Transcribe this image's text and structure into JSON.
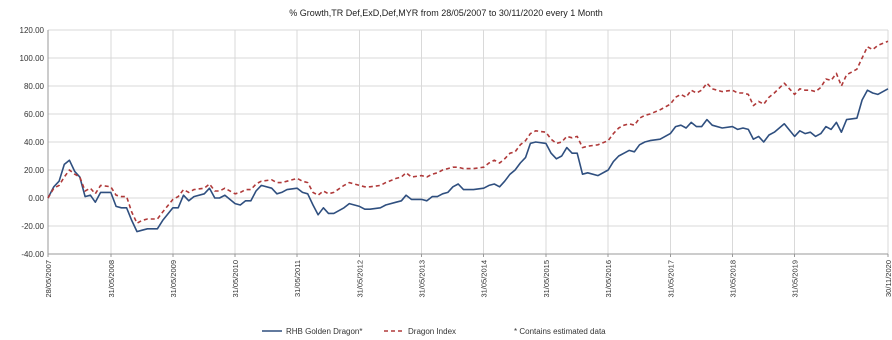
{
  "chart_data": {
    "type": "line",
    "title": "% Growth,TR Def,ExD,Def,MYR from 28/05/2007 to 30/11/2020 every 1 Month",
    "xlabel": "",
    "ylabel": "",
    "x_range": [
      "2007-05-28",
      "2020-11-30"
    ],
    "ylim": [
      -40,
      120
    ],
    "y_ticks": [
      120,
      100,
      80,
      60,
      40,
      20,
      0,
      -20,
      -40
    ],
    "y_tick_labels": [
      "120.00",
      "100.00",
      "80.00",
      "60.00",
      "40.00",
      "20.00",
      "0.00",
      "-20.00",
      "-40.00"
    ],
    "x_ticks": [
      "2007-05-28",
      "2008-05-31",
      "2009-05-31",
      "2010-05-31",
      "2011-05-31",
      "2012-05-31",
      "2013-05-31",
      "2014-05-31",
      "2015-05-31",
      "2016-05-31",
      "2017-05-31",
      "2018-05-31",
      "2019-05-31",
      "2020-11-30"
    ],
    "x_tick_labels": [
      "28/05/2007",
      "31/05/2008",
      "31/05/2009",
      "31/05/2010",
      "31/05/2011",
      "31/05/2012",
      "31/05/2013",
      "31/05/2014",
      "31/05/2015",
      "31/05/2016",
      "31/05/2017",
      "31/05/2018",
      "31/05/2019",
      "30/11/2020"
    ],
    "grid": true,
    "legend_position": "bottom",
    "series": [
      {
        "name": "RHB Golden Dragon*",
        "color": "#2f4f7f",
        "style": "solid",
        "points": [
          [
            "2007-05-28",
            0
          ],
          [
            "2007-07-01",
            8
          ],
          [
            "2007-08-01",
            12
          ],
          [
            "2007-09-01",
            24
          ],
          [
            "2007-10-01",
            27
          ],
          [
            "2007-11-01",
            19
          ],
          [
            "2007-12-01",
            15
          ],
          [
            "2008-01-01",
            1
          ],
          [
            "2008-02-01",
            2
          ],
          [
            "2008-03-01",
            -3
          ],
          [
            "2008-04-01",
            4
          ],
          [
            "2008-05-31",
            4
          ],
          [
            "2008-07-01",
            -6
          ],
          [
            "2008-08-01",
            -7
          ],
          [
            "2008-09-01",
            -7
          ],
          [
            "2008-10-01",
            -16
          ],
          [
            "2008-11-01",
            -24
          ],
          [
            "2008-12-01",
            -23
          ],
          [
            "2009-01-01",
            -22
          ],
          [
            "2009-03-01",
            -22
          ],
          [
            "2009-04-01",
            -16
          ],
          [
            "2009-05-31",
            -7
          ],
          [
            "2009-07-01",
            -7
          ],
          [
            "2009-08-01",
            2
          ],
          [
            "2009-09-01",
            -2
          ],
          [
            "2009-10-01",
            1
          ],
          [
            "2009-12-01",
            3
          ],
          [
            "2010-01-01",
            7
          ],
          [
            "2010-02-01",
            0
          ],
          [
            "2010-03-01",
            0
          ],
          [
            "2010-04-01",
            2
          ],
          [
            "2010-05-31",
            -4
          ],
          [
            "2010-07-01",
            -5
          ],
          [
            "2010-08-01",
            -2
          ],
          [
            "2010-09-01",
            -2
          ],
          [
            "2010-10-01",
            5
          ],
          [
            "2010-11-01",
            9
          ],
          [
            "2011-01-01",
            7
          ],
          [
            "2011-02-01",
            3
          ],
          [
            "2011-03-01",
            4
          ],
          [
            "2011-04-01",
            6
          ],
          [
            "2011-05-31",
            7
          ],
          [
            "2011-07-01",
            4
          ],
          [
            "2011-08-01",
            3
          ],
          [
            "2011-09-01",
            -5
          ],
          [
            "2011-10-01",
            -12
          ],
          [
            "2011-11-01",
            -7
          ],
          [
            "2011-12-01",
            -11
          ],
          [
            "2012-01-01",
            -11
          ],
          [
            "2012-03-01",
            -7
          ],
          [
            "2012-04-01",
            -4
          ],
          [
            "2012-05-31",
            -6
          ],
          [
            "2012-07-01",
            -8
          ],
          [
            "2012-08-01",
            -8
          ],
          [
            "2012-10-01",
            -7
          ],
          [
            "2012-11-01",
            -5
          ],
          [
            "2013-01-01",
            -3
          ],
          [
            "2013-02-01",
            -2
          ],
          [
            "2013-03-01",
            2
          ],
          [
            "2013-04-01",
            -1
          ],
          [
            "2013-05-31",
            -1
          ],
          [
            "2013-07-01",
            -2
          ],
          [
            "2013-08-01",
            1
          ],
          [
            "2013-09-01",
            1
          ],
          [
            "2013-10-01",
            3
          ],
          [
            "2013-11-01",
            4
          ],
          [
            "2013-12-01",
            8
          ],
          [
            "2014-01-01",
            10
          ],
          [
            "2014-02-01",
            6
          ],
          [
            "2014-04-01",
            6
          ],
          [
            "2014-05-31",
            7
          ],
          [
            "2014-07-01",
            9
          ],
          [
            "2014-08-01",
            10
          ],
          [
            "2014-09-01",
            8
          ],
          [
            "2014-10-01",
            12
          ],
          [
            "2014-11-01",
            17
          ],
          [
            "2014-12-01",
            20
          ],
          [
            "2015-01-01",
            25
          ],
          [
            "2015-02-01",
            29
          ],
          [
            "2015-03-01",
            39
          ],
          [
            "2015-04-01",
            40
          ],
          [
            "2015-05-31",
            39
          ],
          [
            "2015-07-01",
            32
          ],
          [
            "2015-08-01",
            28
          ],
          [
            "2015-09-01",
            30
          ],
          [
            "2015-10-01",
            36
          ],
          [
            "2015-11-01",
            32
          ],
          [
            "2015-12-01",
            32
          ],
          [
            "2016-01-01",
            17
          ],
          [
            "2016-02-01",
            18
          ],
          [
            "2016-04-01",
            16
          ],
          [
            "2016-05-31",
            20
          ],
          [
            "2016-07-01",
            26
          ],
          [
            "2016-08-01",
            30
          ],
          [
            "2016-09-01",
            32
          ],
          [
            "2016-10-01",
            34
          ],
          [
            "2016-11-01",
            33
          ],
          [
            "2016-12-01",
            38
          ],
          [
            "2017-01-01",
            40
          ],
          [
            "2017-02-01",
            41
          ],
          [
            "2017-04-01",
            42
          ],
          [
            "2017-05-31",
            46
          ],
          [
            "2017-07-01",
            51
          ],
          [
            "2017-08-01",
            52
          ],
          [
            "2017-09-01",
            50
          ],
          [
            "2017-10-01",
            54
          ],
          [
            "2017-11-01",
            51
          ],
          [
            "2017-12-01",
            51
          ],
          [
            "2018-01-01",
            56
          ],
          [
            "2018-02-01",
            52
          ],
          [
            "2018-04-01",
            50
          ],
          [
            "2018-05-31",
            51
          ],
          [
            "2018-07-01",
            49
          ],
          [
            "2018-08-01",
            50
          ],
          [
            "2018-09-01",
            49
          ],
          [
            "2018-10-01",
            42
          ],
          [
            "2018-11-01",
            44
          ],
          [
            "2018-12-01",
            40
          ],
          [
            "2019-01-01",
            45
          ],
          [
            "2019-02-01",
            47
          ],
          [
            "2019-04-01",
            53
          ],
          [
            "2019-05-31",
            44
          ],
          [
            "2019-07-01",
            48
          ],
          [
            "2019-08-01",
            46
          ],
          [
            "2019-09-01",
            47
          ],
          [
            "2019-10-01",
            44
          ],
          [
            "2019-11-01",
            46
          ],
          [
            "2019-12-01",
            51
          ],
          [
            "2020-01-01",
            49
          ],
          [
            "2020-02-01",
            54
          ],
          [
            "2020-03-01",
            47
          ],
          [
            "2020-04-01",
            56
          ],
          [
            "2020-05-31",
            57
          ],
          [
            "2020-07-01",
            70
          ],
          [
            "2020-08-01",
            77
          ],
          [
            "2020-09-01",
            75
          ],
          [
            "2020-10-01",
            74
          ],
          [
            "2020-11-30",
            78
          ]
        ]
      },
      {
        "name": "Dragon Index",
        "color": "#b03a3a",
        "style": "dashed",
        "points": [
          [
            "2007-05-28",
            0
          ],
          [
            "2007-07-01",
            7
          ],
          [
            "2007-08-01",
            9
          ],
          [
            "2007-09-01",
            15
          ],
          [
            "2007-10-01",
            20
          ],
          [
            "2007-11-01",
            17
          ],
          [
            "2007-12-01",
            15
          ],
          [
            "2008-01-01",
            5
          ],
          [
            "2008-02-01",
            7
          ],
          [
            "2008-03-01",
            3
          ],
          [
            "2008-04-01",
            9
          ],
          [
            "2008-05-31",
            8
          ],
          [
            "2008-07-01",
            2
          ],
          [
            "2008-08-01",
            1
          ],
          [
            "2008-09-01",
            1
          ],
          [
            "2008-10-01",
            -10
          ],
          [
            "2008-11-01",
            -18
          ],
          [
            "2008-12-01",
            -16
          ],
          [
            "2009-01-01",
            -15
          ],
          [
            "2009-03-01",
            -15
          ],
          [
            "2009-04-01",
            -10
          ],
          [
            "2009-05-31",
            -1
          ],
          [
            "2009-07-01",
            1
          ],
          [
            "2009-08-01",
            6
          ],
          [
            "2009-09-01",
            4
          ],
          [
            "2009-10-01",
            6
          ],
          [
            "2009-12-01",
            7
          ],
          [
            "2010-01-01",
            10
          ],
          [
            "2010-02-01",
            5
          ],
          [
            "2010-03-01",
            5
          ],
          [
            "2010-04-01",
            7
          ],
          [
            "2010-05-31",
            3
          ],
          [
            "2010-07-01",
            4
          ],
          [
            "2010-08-01",
            6
          ],
          [
            "2010-09-01",
            6
          ],
          [
            "2010-10-01",
            10
          ],
          [
            "2010-11-01",
            12
          ],
          [
            "2011-01-01",
            13
          ],
          [
            "2011-02-01",
            11
          ],
          [
            "2011-03-01",
            11
          ],
          [
            "2011-04-01",
            12
          ],
          [
            "2011-05-31",
            14
          ],
          [
            "2011-07-01",
            12
          ],
          [
            "2011-08-01",
            11
          ],
          [
            "2011-09-01",
            4
          ],
          [
            "2011-10-01",
            2
          ],
          [
            "2011-11-01",
            5
          ],
          [
            "2011-12-01",
            3
          ],
          [
            "2012-01-01",
            4
          ],
          [
            "2012-03-01",
            9
          ],
          [
            "2012-04-01",
            11
          ],
          [
            "2012-05-31",
            9
          ],
          [
            "2012-07-01",
            8
          ],
          [
            "2012-08-01",
            8
          ],
          [
            "2012-10-01",
            9
          ],
          [
            "2012-11-01",
            11
          ],
          [
            "2013-01-01",
            14
          ],
          [
            "2013-02-01",
            15
          ],
          [
            "2013-03-01",
            18
          ],
          [
            "2013-04-01",
            15
          ],
          [
            "2013-05-31",
            16
          ],
          [
            "2013-07-01",
            15
          ],
          [
            "2013-08-01",
            17
          ],
          [
            "2013-09-01",
            18
          ],
          [
            "2013-10-01",
            20
          ],
          [
            "2013-11-01",
            21
          ],
          [
            "2013-12-01",
            22
          ],
          [
            "2014-01-01",
            22
          ],
          [
            "2014-02-01",
            21
          ],
          [
            "2014-04-01",
            21
          ],
          [
            "2014-05-31",
            22
          ],
          [
            "2014-07-01",
            25
          ],
          [
            "2014-08-01",
            27
          ],
          [
            "2014-09-01",
            25
          ],
          [
            "2014-10-01",
            28
          ],
          [
            "2014-11-01",
            32
          ],
          [
            "2014-12-01",
            33
          ],
          [
            "2015-01-01",
            38
          ],
          [
            "2015-02-01",
            41
          ],
          [
            "2015-03-01",
            46
          ],
          [
            "2015-04-01",
            48
          ],
          [
            "2015-05-31",
            47
          ],
          [
            "2015-07-01",
            42
          ],
          [
            "2015-08-01",
            39
          ],
          [
            "2015-09-01",
            40
          ],
          [
            "2015-10-01",
            44
          ],
          [
            "2015-11-01",
            43
          ],
          [
            "2015-12-01",
            44
          ],
          [
            "2016-01-01",
            36
          ],
          [
            "2016-02-01",
            37
          ],
          [
            "2016-04-01",
            38
          ],
          [
            "2016-05-31",
            41
          ],
          [
            "2016-07-01",
            46
          ],
          [
            "2016-08-01",
            50
          ],
          [
            "2016-09-01",
            52
          ],
          [
            "2016-10-01",
            53
          ],
          [
            "2016-11-01",
            52
          ],
          [
            "2016-12-01",
            57
          ],
          [
            "2017-01-01",
            59
          ],
          [
            "2017-02-01",
            60
          ],
          [
            "2017-04-01",
            63
          ],
          [
            "2017-05-31",
            67
          ],
          [
            "2017-07-01",
            72
          ],
          [
            "2017-08-01",
            74
          ],
          [
            "2017-09-01",
            72
          ],
          [
            "2017-10-01",
            77
          ],
          [
            "2017-11-01",
            75
          ],
          [
            "2017-12-01",
            77
          ],
          [
            "2018-01-01",
            82
          ],
          [
            "2018-02-01",
            78
          ],
          [
            "2018-04-01",
            76
          ],
          [
            "2018-05-31",
            77
          ],
          [
            "2018-07-01",
            75
          ],
          [
            "2018-08-01",
            75
          ],
          [
            "2018-09-01",
            74
          ],
          [
            "2018-10-01",
            66
          ],
          [
            "2018-11-01",
            69
          ],
          [
            "2018-12-01",
            67
          ],
          [
            "2019-01-01",
            72
          ],
          [
            "2019-02-01",
            75
          ],
          [
            "2019-04-01",
            82
          ],
          [
            "2019-05-31",
            74
          ],
          [
            "2019-07-01",
            78
          ],
          [
            "2019-08-01",
            77
          ],
          [
            "2019-09-01",
            77
          ],
          [
            "2019-10-01",
            76
          ],
          [
            "2019-11-01",
            79
          ],
          [
            "2019-12-01",
            85
          ],
          [
            "2020-01-01",
            84
          ],
          [
            "2020-02-01",
            89
          ],
          [
            "2020-03-01",
            80
          ],
          [
            "2020-04-01",
            88
          ],
          [
            "2020-05-31",
            92
          ],
          [
            "2020-07-01",
            100
          ],
          [
            "2020-08-01",
            108
          ],
          [
            "2020-09-01",
            106
          ],
          [
            "2020-10-01",
            109
          ],
          [
            "2020-11-30",
            112
          ]
        ]
      }
    ],
    "footnote": "* Contains estimated data"
  }
}
